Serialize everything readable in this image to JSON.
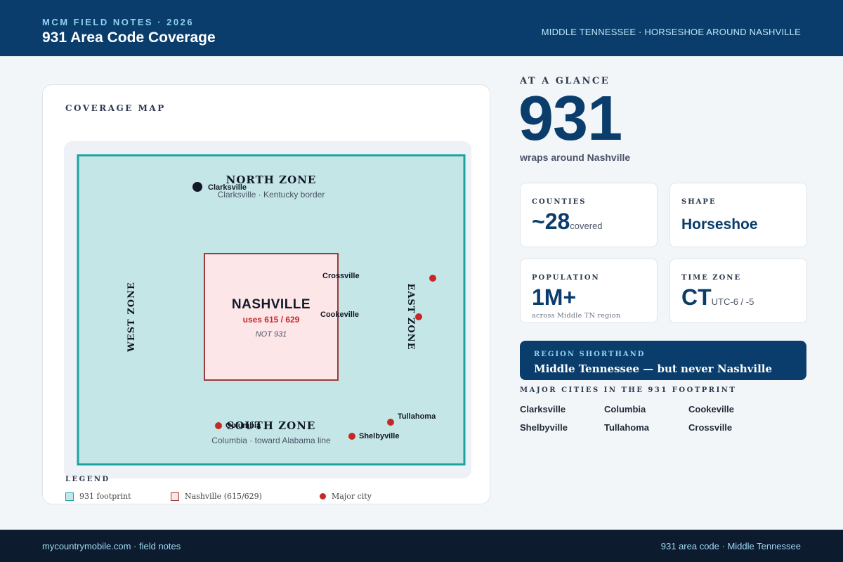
{
  "header": {
    "kicker": "MCM FIELD NOTES · 2026",
    "title": "931 Area Code Coverage",
    "right": "MIDDLE TENNESSEE · HORSESHOE AROUND NASHVILLE"
  },
  "map_card": {
    "title": "COVERAGE MAP",
    "zones": {
      "north": "NORTH ZONE",
      "north_sub": "Clarksville · Kentucky border",
      "south": "SOUTH ZONE",
      "south_sub": "Columbia · toward Alabama line",
      "west": "WEST ZONE",
      "east": "EAST ZONE"
    },
    "nashville": {
      "name": "NASHVILLE",
      "codes": "uses 615 / 629",
      "note": "NOT 931"
    },
    "cities": {
      "clarksville": "Clarksville",
      "crossville": "Crossville",
      "cookeville": "Cookeville",
      "columbia": "Columbia",
      "tullahoma": "Tullahoma",
      "shelbyville": "Shelbyville"
    },
    "legend": {
      "title": "LEGEND",
      "footprint": "931 footprint",
      "nashville": "Nashville (615/629)",
      "city": "Major city"
    },
    "colors": {
      "footprint_fill": "#c5e6e6",
      "footprint_stroke": "#1aa3a3",
      "nashville_fill": "#fde6e8",
      "nashville_stroke": "#9b3a3a",
      "city_dot": "#c62828"
    }
  },
  "glance": {
    "label": "AT A GLANCE",
    "number": "931",
    "subtitle": "wraps around Nashville"
  },
  "stats": {
    "counties": {
      "label": "COUNTIES",
      "value": "~28",
      "suffix": "covered"
    },
    "shape": {
      "label": "SHAPE",
      "value": "Horseshoe"
    },
    "population": {
      "label": "POPULATION",
      "value": "1M+",
      "note": "across Middle TN region"
    },
    "timezone": {
      "label": "TIME ZONE",
      "value": "CT",
      "suffix": "UTC-6 / -5"
    }
  },
  "shorthand": {
    "label": "REGION SHORTHAND",
    "text": "Middle Tennessee — but never Nashville"
  },
  "major_cities": {
    "label": "MAJOR CITIES IN THE 931 FOOTPRINT",
    "items": [
      "Clarksville",
      "Columbia",
      "Cookeville",
      "Shelbyville",
      "Tullahoma",
      "Crossville"
    ]
  },
  "footer": {
    "left": "mycountrymobile.com · field notes",
    "right": "931 area code · Middle Tennessee"
  }
}
